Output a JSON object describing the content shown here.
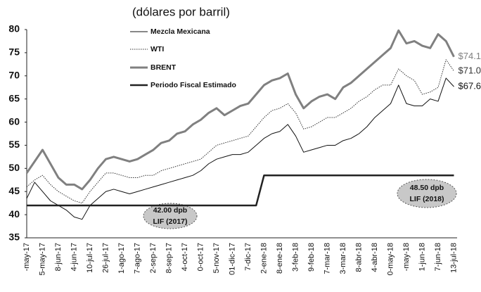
{
  "chart_data": {
    "type": "line",
    "title": "(dólares por barril)",
    "categories": [
      "-may-17",
      null,
      "5-may-17",
      null,
      "8-jun-17",
      null,
      "4-jun-17",
      null,
      "10-jul-17",
      null,
      "26-jul-17",
      null,
      "1-ago-17",
      null,
      "7-ago-17",
      null,
      "2-sep-17",
      null,
      "8-sep-17",
      null,
      "4-oct-17",
      null,
      "0-oct-17",
      null,
      "5-nov-17",
      null,
      "01-dic-17",
      null,
      "7-dic-17",
      null,
      "2-ene-18",
      null,
      "8-ene-18",
      null,
      "3-feb-18",
      null,
      "9-feb-18",
      null,
      "7-mar-18",
      null,
      "3-mar-18",
      null,
      "8-abr-18",
      null,
      "4-abr-18",
      null,
      "0-may-18",
      null,
      "-may-18",
      null,
      "1-jun-18",
      null,
      "7-jun-18",
      null,
      "13-jul-18"
    ],
    "series": [
      {
        "name": "Mezcla Mexicana",
        "color": "#111111",
        "line_width": 1,
        "style": "solid",
        "values": [
          43.5,
          47,
          45,
          43,
          42,
          41,
          39.5,
          39,
          42,
          43.5,
          45,
          45.5,
          45,
          44.5,
          45,
          45.5,
          46,
          46.5,
          47,
          47.5,
          48,
          48.5,
          49.5,
          51,
          52,
          52.5,
          53,
          53,
          53.5,
          55,
          56.5,
          57.5,
          58,
          59.5,
          57,
          53.5,
          54,
          54.5,
          55,
          55,
          56,
          56.5,
          57.5,
          59,
          61,
          62.5,
          64,
          68,
          64,
          63.5,
          63.5,
          65,
          64.5,
          69.5,
          67.67
        ],
        "value_labels": [
          null,
          null,
          null,
          null,
          null,
          null,
          null,
          null,
          null,
          null,
          null,
          null,
          null,
          null,
          null,
          null,
          null,
          null,
          null,
          null,
          null,
          null,
          null,
          null,
          null,
          null,
          null,
          null,
          null,
          null,
          null,
          null,
          null,
          null,
          null,
          null,
          null,
          null,
          null,
          null,
          null,
          null,
          null,
          null,
          null,
          null,
          null,
          null,
          null,
          null,
          null,
          null,
          null,
          null,
          "$67.67"
        ]
      },
      {
        "name": "WTI",
        "color": "#333333",
        "line_width": 1,
        "style": "dotted",
        "values": [
          46,
          47.5,
          48.5,
          46.5,
          45,
          44,
          43,
          42.5,
          45,
          47,
          49,
          49,
          48.5,
          48,
          48,
          48.5,
          48.5,
          49.5,
          50,
          50.5,
          51,
          51.5,
          52,
          53.5,
          55,
          55.5,
          56,
          56.5,
          57,
          59,
          61,
          62.5,
          63,
          64,
          62,
          58.5,
          59,
          60,
          61,
          61,
          62,
          63,
          64.5,
          65.5,
          67,
          68,
          68,
          71.5,
          70,
          69,
          66,
          66.5,
          67.5,
          73.5,
          71.03
        ],
        "value_labels": [
          null,
          null,
          null,
          null,
          null,
          null,
          null,
          null,
          null,
          null,
          null,
          null,
          null,
          null,
          null,
          null,
          null,
          null,
          null,
          null,
          null,
          null,
          null,
          null,
          null,
          null,
          null,
          null,
          null,
          null,
          null,
          null,
          null,
          null,
          null,
          null,
          null,
          null,
          null,
          null,
          null,
          null,
          null,
          null,
          null,
          null,
          null,
          null,
          null,
          null,
          null,
          null,
          null,
          null,
          "$71.03"
        ]
      },
      {
        "name": "BRENT",
        "color": "#808080",
        "line_width": 3,
        "style": "solid",
        "values": [
          49,
          51.5,
          54,
          51,
          48,
          46.5,
          46.5,
          45.5,
          47.5,
          50,
          52,
          52.5,
          52,
          51.5,
          52,
          53,
          54,
          55.5,
          56,
          57.5,
          58,
          59.5,
          60.5,
          62,
          63,
          61.5,
          62.5,
          63.5,
          64,
          66,
          68,
          69,
          69.5,
          70.5,
          66,
          63,
          64.5,
          65.5,
          66,
          65,
          67.5,
          68.5,
          70,
          71.5,
          73,
          74.5,
          76,
          79.8,
          77,
          77.5,
          76.5,
          76,
          79,
          77.5,
          74.11
        ],
        "value_labels": [
          null,
          null,
          null,
          null,
          null,
          null,
          null,
          null,
          null,
          null,
          null,
          null,
          null,
          null,
          null,
          null,
          null,
          null,
          null,
          null,
          null,
          null,
          null,
          null,
          null,
          null,
          null,
          null,
          null,
          null,
          null,
          null,
          null,
          null,
          null,
          null,
          null,
          null,
          null,
          null,
          null,
          null,
          null,
          null,
          null,
          null,
          null,
          null,
          null,
          null,
          null,
          null,
          null,
          null,
          "$74.11"
        ]
      },
      {
        "name": "Periodo Fiscal Estimado",
        "color": "#222222",
        "line_width": 2.5,
        "style": "solid",
        "values": [
          42,
          42,
          42,
          42,
          42,
          42,
          42,
          42,
          42,
          42,
          42,
          42,
          42,
          42,
          42,
          42,
          42,
          42,
          42,
          42,
          42,
          42,
          42,
          42,
          42,
          42,
          42,
          42,
          42,
          42,
          48.5,
          48.5,
          48.5,
          48.5,
          48.5,
          48.5,
          48.5,
          48.5,
          48.5,
          48.5,
          48.5,
          48.5,
          48.5,
          48.5,
          48.5,
          48.5,
          48.5,
          48.5,
          48.5,
          48.5,
          48.5,
          48.5,
          48.5,
          48.5,
          48.5
        ]
      }
    ],
    "annotations": [
      {
        "lines": [
          "42.00 dpb",
          "LIF (2017)"
        ]
      },
      {
        "lines": [
          "48.50 dpb",
          "LIF (2018)"
        ]
      }
    ],
    "ylim": [
      35,
      80
    ],
    "yticks": [
      35,
      40,
      45,
      50,
      55,
      60,
      65,
      70,
      75,
      80
    ],
    "grid": false
  }
}
